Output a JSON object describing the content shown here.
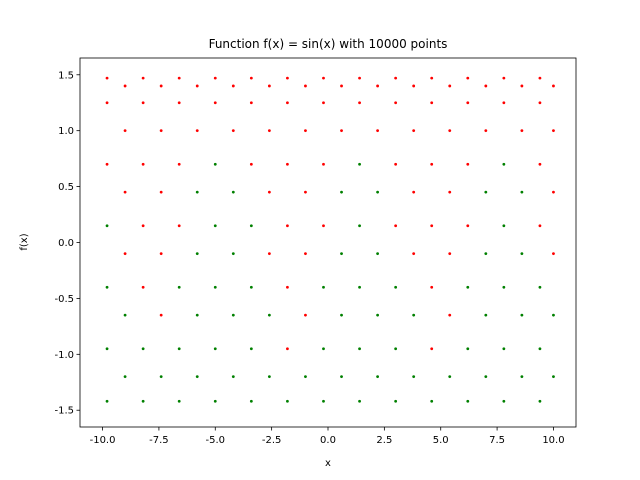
{
  "chart_data": {
    "type": "scatter",
    "title": "Function f(x) = sin(x) with 10000 points",
    "x_label": "x",
    "y_label": "f(x)",
    "xlim": [
      -11,
      11
    ],
    "ylim": [
      -1.65,
      1.65
    ],
    "xticks": [
      {
        "value": -10,
        "label": "-10.0"
      },
      -7.5,
      {
        "value": -5,
        "label": "-5.0"
      },
      -2.5,
      {
        "value": 0,
        "label": "0.0"
      },
      2.5,
      {
        "value": 5,
        "label": "5.0"
      },
      7.5,
      {
        "value": 10,
        "label": "10.0"
      }
    ],
    "yticks": [
      -1.5,
      {
        "value": -1,
        "label": "-1.0"
      },
      -0.5,
      {
        "value": 0,
        "label": "0.0"
      },
      0.5,
      {
        "value": 1,
        "label": "1.0"
      },
      1.5
    ],
    "series": [
      {
        "color": "#ff0000",
        "x": [
          -9.8,
          -9.8,
          -9.8,
          -9,
          -9,
          -9,
          -9,
          -8.2,
          -8.2,
          -8.2,
          -8.2,
          -8.2,
          -7.4,
          -7.4,
          -7.4,
          -7.4,
          -7.4,
          -6.6,
          -6.6,
          -6.6,
          -6.6,
          -5.8,
          -5.8,
          -5,
          -5,
          -4.2,
          -4.2,
          -3.4,
          -3.4,
          -3.4,
          -2.6,
          -2.6,
          -2.6,
          -2.6,
          -1.8,
          -1.8,
          -1.8,
          -1.8,
          -1.8,
          -1.8,
          -1,
          -1,
          -1,
          -1,
          -1,
          -0.2,
          -0.2,
          -0.2,
          -0.2,
          0.6,
          0.6,
          1.4,
          1.4,
          2.2,
          2.2,
          3,
          3,
          3,
          3,
          3.8,
          3.8,
          3.8,
          3.8,
          4.6,
          4.6,
          4.6,
          4.6,
          4.6,
          4.6,
          5.4,
          5.4,
          5.4,
          5.4,
          5.4,
          6.2,
          6.2,
          6.2,
          6.2,
          7,
          7,
          7.8,
          7.8,
          8.6,
          8.6,
          9.4,
          9.4,
          9.4,
          9.4,
          10,
          10,
          10,
          10
        ],
        "values": [
          0.7,
          1.25,
          1.47,
          -0.1,
          0.45,
          1,
          1.4,
          -0.4,
          0.15,
          0.7,
          1.25,
          1.47,
          -0.65,
          -0.1,
          0.45,
          1,
          1.4,
          0.15,
          0.7,
          1.25,
          1.47,
          1,
          1.4,
          1.25,
          1.47,
          1,
          1.4,
          0.7,
          1.25,
          1.47,
          -0.1,
          0.45,
          1,
          1.4,
          -0.95,
          -0.4,
          0.15,
          0.7,
          1.25,
          1.47,
          -0.65,
          -0.1,
          0.45,
          1,
          1.4,
          0.15,
          0.7,
          1.25,
          1.47,
          1,
          1.4,
          1.25,
          1.47,
          1,
          1.4,
          0.15,
          0.7,
          1.25,
          1.47,
          -0.1,
          0.45,
          1,
          1.4,
          -0.95,
          -0.4,
          0.15,
          0.7,
          1.25,
          1.47,
          -0.65,
          -0.1,
          0.45,
          1,
          1.4,
          0.15,
          0.7,
          1.25,
          1.47,
          1,
          1.4,
          1.25,
          1.47,
          1,
          1.4,
          0.15,
          0.7,
          1.25,
          1.47,
          -0.1,
          0.45,
          1,
          1.4
        ]
      },
      {
        "color": "#008000",
        "x": [
          -9.8,
          -9.8,
          -9.8,
          -9.8,
          -9,
          -9,
          -8.2,
          -8.2,
          -7.4,
          -6.6,
          -6.6,
          -6.6,
          -5.8,
          -5.8,
          -5.8,
          -5.8,
          -5,
          -5,
          -5,
          -5,
          -5,
          -4.2,
          -4.2,
          -4.2,
          -4.2,
          -3.4,
          -3.4,
          -3.4,
          -3.4,
          -2.6,
          -2.6,
          -1.8,
          -1,
          -0.2,
          -0.2,
          -0.2,
          0.6,
          0.6,
          0.6,
          0.6,
          1.4,
          1.4,
          1.4,
          1.4,
          1.4,
          2.2,
          2.2,
          2.2,
          2.2,
          3,
          3,
          3,
          3.8,
          3.8,
          4.6,
          5.4,
          6.2,
          6.2,
          6.2,
          7,
          7,
          7,
          7,
          7.8,
          7.8,
          7.8,
          7.8,
          7.8,
          8.6,
          8.6,
          8.6,
          8.6,
          9.4,
          9.4,
          9.4,
          10,
          10
        ],
        "values": [
          -1.42,
          -0.95,
          -0.4,
          0.15,
          -1.2,
          -0.65,
          -1.42,
          -0.95,
          -1.2,
          -1.42,
          -0.95,
          -0.4,
          -1.2,
          -0.65,
          -0.1,
          0.45,
          -1.42,
          -0.95,
          -0.4,
          0.15,
          0.7,
          -1.2,
          -0.65,
          -0.1,
          0.45,
          -1.42,
          -0.95,
          -0.4,
          0.15,
          -1.2,
          -0.65,
          -1.42,
          -1.2,
          -1.42,
          -0.95,
          -0.4,
          -1.2,
          -0.65,
          -0.1,
          0.45,
          -1.42,
          -0.95,
          -0.4,
          0.15,
          0.7,
          -1.2,
          -0.65,
          -0.1,
          0.45,
          -1.42,
          -0.95,
          -0.4,
          -1.2,
          -0.65,
          -1.42,
          -1.2,
          -1.42,
          -0.95,
          -0.4,
          -1.2,
          -0.65,
          -0.1,
          0.45,
          -1.42,
          -0.95,
          -0.4,
          0.15,
          0.7,
          -1.2,
          -0.65,
          -0.1,
          0.45,
          -1.42,
          -0.95,
          -0.4,
          -1.2,
          -0.65
        ]
      }
    ]
  }
}
